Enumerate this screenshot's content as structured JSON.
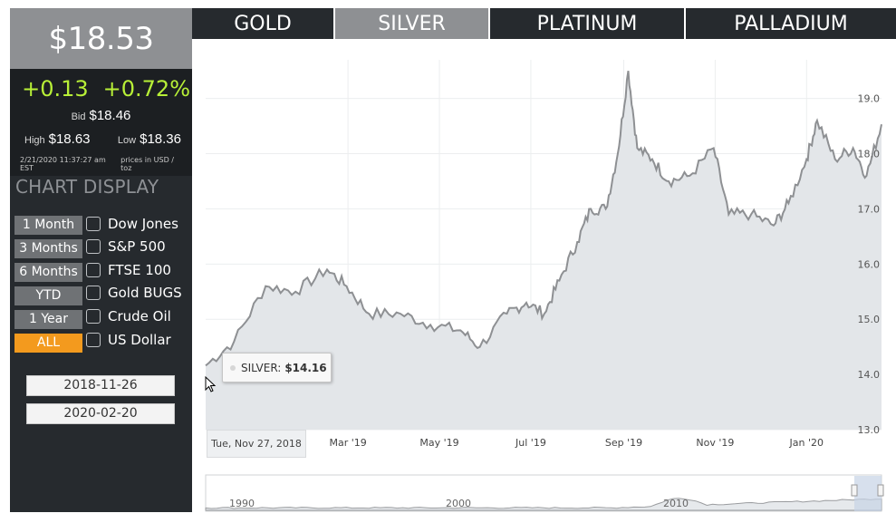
{
  "quote": {
    "price": "$18.53",
    "change": "+0.13",
    "change_pct": "+0.72%",
    "bid_label": "Bid",
    "bid": "$18.46",
    "high_label": "High",
    "high": "$18.63",
    "low_label": "Low",
    "low": "$18.36",
    "timestamp": "2/21/2020 11:37:27 am EST",
    "units": "prices in USD / toz"
  },
  "chart_display": {
    "heading": "CHART DISPLAY",
    "ranges": [
      {
        "label": "1 Month",
        "active": false
      },
      {
        "label": "3 Months",
        "active": false
      },
      {
        "label": "6 Months",
        "active": false
      },
      {
        "label": "YTD",
        "active": false
      },
      {
        "label": "1 Year",
        "active": false
      },
      {
        "label": "ALL",
        "active": true
      }
    ],
    "comparisons": [
      {
        "label": "Dow Jones",
        "checked": false
      },
      {
        "label": "S&P 500",
        "checked": false
      },
      {
        "label": "FTSE 100",
        "checked": false
      },
      {
        "label": "Gold BUGS",
        "checked": false
      },
      {
        "label": "Crude Oil",
        "checked": false
      },
      {
        "label": "US Dollar",
        "checked": false
      }
    ],
    "start_date": "2018-11-26",
    "end_date": "2020-02-20"
  },
  "tabs": [
    {
      "label": "GOLD",
      "active": false
    },
    {
      "label": "SILVER",
      "active": true
    },
    {
      "label": "PLATINUM",
      "active": false
    },
    {
      "label": "PALLADIUM",
      "active": false
    }
  ],
  "tooltip": {
    "series": "SILVER:",
    "value": "$14.16"
  },
  "hover_date": "Tue, Nov 27, 2018",
  "colors": {
    "accent": "#f39a1e",
    "positive": "#b8f037",
    "panel": "#262a2e",
    "line": "#8e9093",
    "area": "#e3e6e9"
  },
  "chart_data": {
    "type": "area",
    "series": [
      {
        "x": [
          "2018-11-26",
          "2018-12-15",
          "2019-01-05",
          "2019-01-25",
          "2019-02-15",
          "2019-02-28",
          "2019-03-15",
          "2019-04-05",
          "2019-04-25",
          "2019-05-15",
          "2019-05-28",
          "2019-06-15",
          "2019-06-28",
          "2019-07-10",
          "2019-07-20",
          "2019-08-01",
          "2019-08-10",
          "2019-08-20",
          "2019-08-28",
          "2019-09-04",
          "2019-09-10",
          "2019-09-20",
          "2019-10-01",
          "2019-10-15",
          "2019-10-31",
          "2019-11-10",
          "2019-11-25",
          "2019-12-10",
          "2019-12-20",
          "2020-01-01",
          "2020-01-08",
          "2020-01-20",
          "2020-02-01",
          "2020-02-10",
          "2020-02-20"
        ],
        "values": [
          14.16,
          14.6,
          15.6,
          15.5,
          15.9,
          15.6,
          15.1,
          15.1,
          14.9,
          14.8,
          14.5,
          15.1,
          15.3,
          15.1,
          15.7,
          16.4,
          17.0,
          17.0,
          18.0,
          19.5,
          18.1,
          17.9,
          17.5,
          17.6,
          18.1,
          16.9,
          16.9,
          16.7,
          17.1,
          17.9,
          18.6,
          17.9,
          18.1,
          17.6,
          18.53
        ]
      }
    ],
    "y_ticks": [
      "13.0",
      "14.0",
      "15.0",
      "16.0",
      "17.0",
      "18.0",
      "19.0"
    ],
    "x_ticks": [
      "Mar '19",
      "May '19",
      "Jul '19",
      "Sep '19",
      "Nov '19",
      "Jan '20"
    ],
    "ylim": [
      13.0,
      19.7
    ],
    "navigator_ticks": [
      "1990",
      "2000",
      "2010"
    ],
    "grid": true,
    "legend": "none"
  }
}
